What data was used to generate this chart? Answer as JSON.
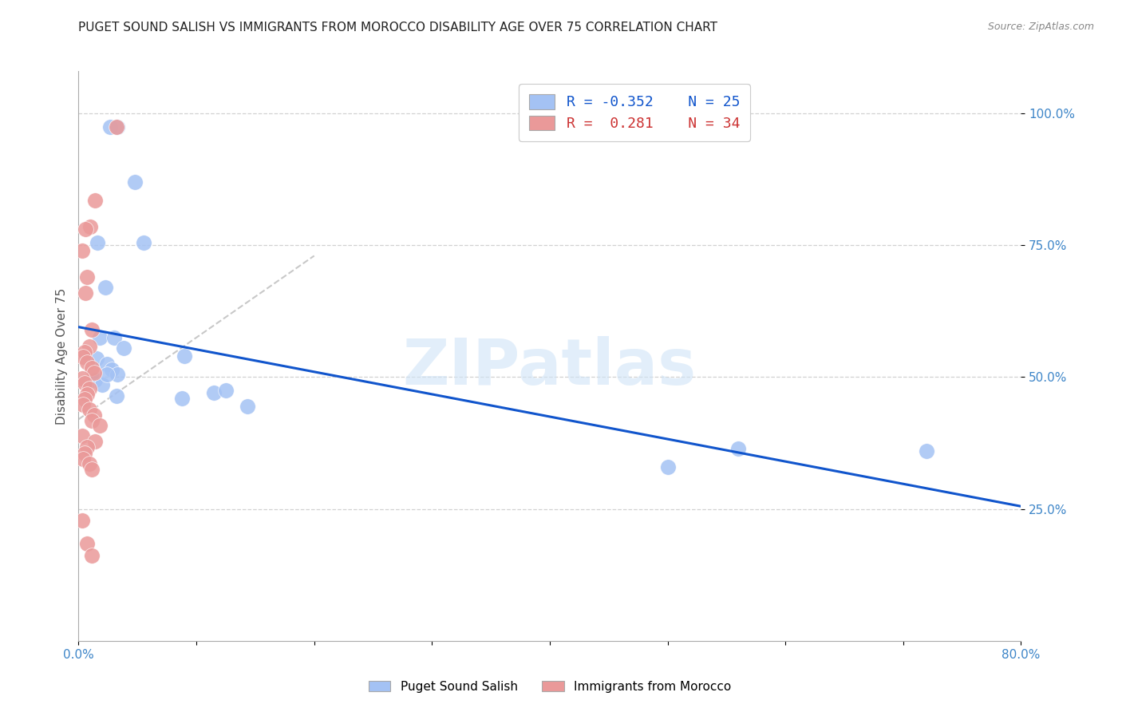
{
  "title": "PUGET SOUND SALISH VS IMMIGRANTS FROM MOROCCO DISABILITY AGE OVER 75 CORRELATION CHART",
  "source": "Source: ZipAtlas.com",
  "ylabel": "Disability Age Over 75",
  "xlim": [
    0.0,
    0.8
  ],
  "ylim": [
    0.0,
    1.08
  ],
  "yticks": [
    0.25,
    0.5,
    0.75,
    1.0
  ],
  "ytick_labels": [
    "25.0%",
    "50.0%",
    "75.0%",
    "100.0%"
  ],
  "xticks": [
    0.0,
    0.1,
    0.2,
    0.3,
    0.4,
    0.5,
    0.6,
    0.7,
    0.8
  ],
  "xtick_labels": [
    "0.0%",
    "",
    "",
    "",
    "",
    "",
    "",
    "",
    "80.0%"
  ],
  "watermark": "ZIPatlas",
  "blue_R": -0.352,
  "blue_N": 25,
  "pink_R": 0.281,
  "pink_N": 34,
  "blue_color": "#a4c2f4",
  "pink_color": "#ea9999",
  "blue_line_color": "#1155cc",
  "blue_scatter": [
    [
      0.027,
      0.975
    ],
    [
      0.033,
      0.975
    ],
    [
      0.048,
      0.87
    ],
    [
      0.016,
      0.755
    ],
    [
      0.055,
      0.755
    ],
    [
      0.023,
      0.67
    ],
    [
      0.018,
      0.575
    ],
    [
      0.03,
      0.575
    ],
    [
      0.038,
      0.555
    ],
    [
      0.015,
      0.535
    ],
    [
      0.024,
      0.525
    ],
    [
      0.028,
      0.515
    ],
    [
      0.033,
      0.505
    ],
    [
      0.014,
      0.495
    ],
    [
      0.02,
      0.485
    ],
    [
      0.024,
      0.505
    ],
    [
      0.09,
      0.54
    ],
    [
      0.032,
      0.465
    ],
    [
      0.115,
      0.47
    ],
    [
      0.143,
      0.445
    ],
    [
      0.125,
      0.475
    ],
    [
      0.088,
      0.46
    ],
    [
      0.56,
      0.365
    ],
    [
      0.5,
      0.33
    ],
    [
      0.72,
      0.36
    ]
  ],
  "pink_scatter": [
    [
      0.032,
      0.975
    ],
    [
      0.014,
      0.835
    ],
    [
      0.01,
      0.785
    ],
    [
      0.006,
      0.78
    ],
    [
      0.003,
      0.74
    ],
    [
      0.007,
      0.69
    ],
    [
      0.006,
      0.66
    ],
    [
      0.011,
      0.59
    ],
    [
      0.009,
      0.558
    ],
    [
      0.005,
      0.548
    ],
    [
      0.004,
      0.538
    ],
    [
      0.007,
      0.528
    ],
    [
      0.011,
      0.518
    ],
    [
      0.013,
      0.508
    ],
    [
      0.003,
      0.498
    ],
    [
      0.005,
      0.488
    ],
    [
      0.009,
      0.478
    ],
    [
      0.007,
      0.468
    ],
    [
      0.005,
      0.458
    ],
    [
      0.004,
      0.448
    ],
    [
      0.009,
      0.438
    ],
    [
      0.013,
      0.428
    ],
    [
      0.011,
      0.418
    ],
    [
      0.018,
      0.408
    ],
    [
      0.003,
      0.388
    ],
    [
      0.014,
      0.378
    ],
    [
      0.007,
      0.368
    ],
    [
      0.005,
      0.355
    ],
    [
      0.004,
      0.345
    ],
    [
      0.009,
      0.335
    ],
    [
      0.011,
      0.325
    ],
    [
      0.003,
      0.228
    ],
    [
      0.007,
      0.185
    ],
    [
      0.011,
      0.162
    ]
  ],
  "blue_line_x": [
    0.0,
    0.8
  ],
  "blue_line_y": [
    0.595,
    0.255
  ],
  "pink_line_x": [
    0.0,
    0.2
  ],
  "pink_line_y": [
    0.42,
    0.73
  ],
  "background_color": "#ffffff",
  "grid_color": "#cccccc",
  "title_fontsize": 11,
  "axis_label_color": "#3d85c8",
  "tick_color": "#3d85c8"
}
